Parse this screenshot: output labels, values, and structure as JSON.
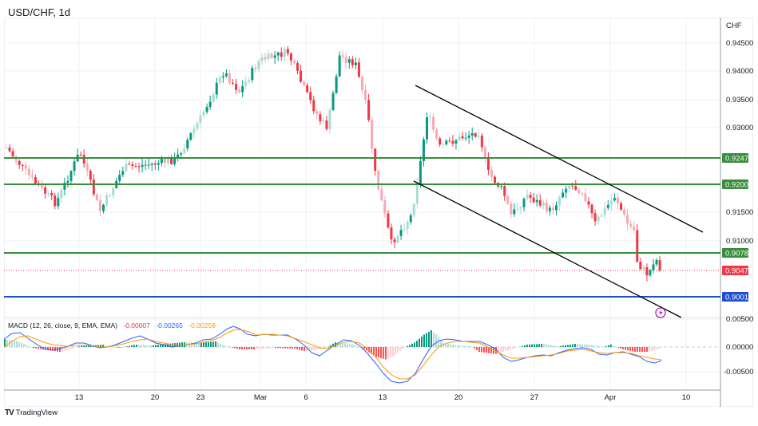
{
  "header": {
    "symbol": "USD/CHF",
    "interval": "1d",
    "title": "USD/CHF, 1d"
  },
  "price_axis": {
    "currency": "CHF",
    "ticks": [
      "0.94500",
      "0.94000",
      "0.93500",
      "0.93000",
      "0.91500",
      "0.91000"
    ],
    "tags": [
      {
        "label": "0.92472",
        "color": "#388e3c",
        "kind": "horizontal-level"
      },
      {
        "label": "0.92001",
        "color": "#388e3c",
        "kind": "horizontal-level"
      },
      {
        "label": "0.90782",
        "color": "#388e3c",
        "kind": "horizontal-level"
      },
      {
        "label": "0.90476",
        "color": "#f23645",
        "kind": "last-price"
      },
      {
        "label": "0.90011",
        "color": "#1e4fd1",
        "kind": "horizontal-level"
      }
    ]
  },
  "macd_axis": {
    "ticks": [
      "0.00500",
      "0.00000",
      "-0.00500"
    ]
  },
  "time_axis": {
    "ticks": [
      "13",
      "20",
      "23",
      "Mar",
      "6",
      "13",
      "20",
      "27",
      "Apr",
      "10"
    ]
  },
  "macd": {
    "label": "MACD (12, 26, close, 9, EMA, EMA)",
    "histogram": "-0.00007",
    "macd": "-0.00265",
    "signal": "-0.00258",
    "colors": {
      "histogram": "#f23645",
      "macd": "#2962ff",
      "signal": "#ff9800"
    }
  },
  "footer": {
    "brand": "TradingView"
  },
  "colors": {
    "up": "#089981",
    "down": "#f23645",
    "up_light": "#a8dcd2",
    "down_light": "#f7a9b3",
    "level": "#388e3c",
    "support": "#1e4fd1",
    "grid": "#eef1f5"
  },
  "chart_data": [
    {
      "type": "candlestick",
      "title": "USD/CHF, 1d",
      "ylabel": "CHF",
      "ylim": [
        0.8995,
        0.9465
      ],
      "x_ticks": [
        "13",
        "20",
        "23",
        "Mar",
        "6",
        "13",
        "20",
        "27",
        "Apr",
        "10"
      ],
      "horizontal_levels": [
        0.92472,
        0.92001,
        0.90782,
        0.90011
      ],
      "last_price": 0.90476,
      "trend_channel": {
        "upper": {
          "from": [
            520,
            0.9369
          ],
          "to": [
            880,
            0.911
          ]
        },
        "lower": {
          "from": [
            518,
            0.9204
          ],
          "to": [
            853,
            0.8995
          ]
        }
      },
      "approx_close_path": [
        {
          "x": "Feb 6",
          "close": 0.925
        },
        {
          "x": "Feb 10",
          "close": 0.918
        },
        {
          "x": "Feb 13",
          "close": 0.922
        },
        {
          "x": "Feb 17",
          "close": 0.924
        },
        {
          "x": "Feb 20",
          "close": 0.929
        },
        {
          "x": "Feb 23",
          "close": 0.935
        },
        {
          "x": "Feb 27",
          "close": 0.939
        },
        {
          "x": "Mar 2",
          "close": 0.942
        },
        {
          "x": "Mar 6",
          "close": 0.937
        },
        {
          "x": "Mar 9",
          "close": 0.943
        },
        {
          "x": "Mar 13",
          "close": 0.921
        },
        {
          "x": "Mar 15",
          "close": 0.91
        },
        {
          "x": "Mar 17",
          "close": 0.933
        },
        {
          "x": "Mar 20",
          "close": 0.928
        },
        {
          "x": "Mar 23",
          "close": 0.928
        },
        {
          "x": "Mar 27",
          "close": 0.916
        },
        {
          "x": "Mar 30",
          "close": 0.921
        },
        {
          "x": "Apr 3",
          "close": 0.915
        },
        {
          "x": "Apr 5",
          "close": 0.906
        },
        {
          "x": "Apr 7",
          "close": 0.90476
        }
      ]
    },
    {
      "type": "macd",
      "title": "MACD (12, 26, close, 9, EMA, EMA)",
      "ylim": [
        -0.0065,
        0.0055
      ],
      "y_ticks": [
        0.005,
        0.0,
        -0.005
      ],
      "series": [
        {
          "name": "Histogram",
          "last": -7e-05
        },
        {
          "name": "MACD",
          "last": -0.00265
        },
        {
          "name": "Signal",
          "last": -0.00258
        }
      ]
    }
  ]
}
